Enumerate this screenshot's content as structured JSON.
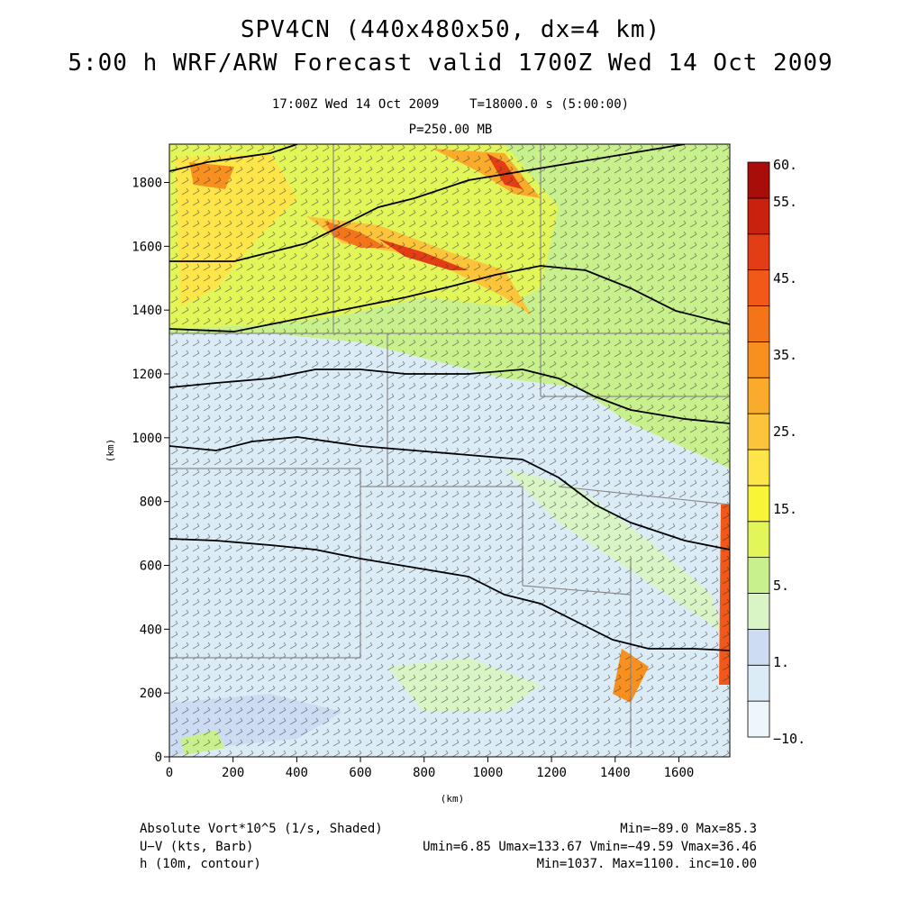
{
  "header": {
    "title_line1": "SPV4CN (440x480x50, dx=4 km)",
    "title_line2": "5:00 h WRF/ARW Forecast valid 1700Z Wed 14 Oct 2009",
    "valid_time": "17:00Z Wed 14 Oct 2009",
    "time_info": "T=18000.0 s (5:00:00)",
    "pressure_level": "P=250.00 MB"
  },
  "axes": {
    "x_label": "(km)",
    "y_label": "(km)",
    "x_ticks": [
      "0",
      "200",
      "400",
      "600",
      "800",
      "1000",
      "1200",
      "1400",
      "1600"
    ],
    "y_ticks": [
      "0",
      "200",
      "400",
      "600",
      "800",
      "1000",
      "1200",
      "1400",
      "1600",
      "1800"
    ],
    "x_range": [
      0,
      1760
    ],
    "y_range": [
      0,
      1920
    ]
  },
  "colorbar": {
    "labels": [
      "60.",
      "55.",
      "45.",
      "35.",
      "25.",
      "15.",
      "5.",
      "1.",
      "−10."
    ],
    "colors": [
      "#ecf6fb",
      "#dcecf7",
      "#cddcf3",
      "#d9f5c6",
      "#c8f08c",
      "#e2f559",
      "#f8f436",
      "#fde54a",
      "#fcc43a",
      "#fbab2c",
      "#f7901f",
      "#f4741a",
      "#f25918",
      "#e23d14",
      "#c8220e",
      "#a80d0a"
    ]
  },
  "footer": {
    "field1_name": "Absolute Vort*10^5 (1/s, Shaded)",
    "field1_stats": "Min=−89.0 Max=85.3",
    "field2_name": "U−V (kts, Barb)",
    "field2_stats": "Umin=6.85 Umax=133.67 Vmin=−49.59 Vmax=36.46",
    "field3_name": "h (10m, contour)",
    "field3_stats": "Min=1037. Max=1100. inc=10.00"
  }
}
